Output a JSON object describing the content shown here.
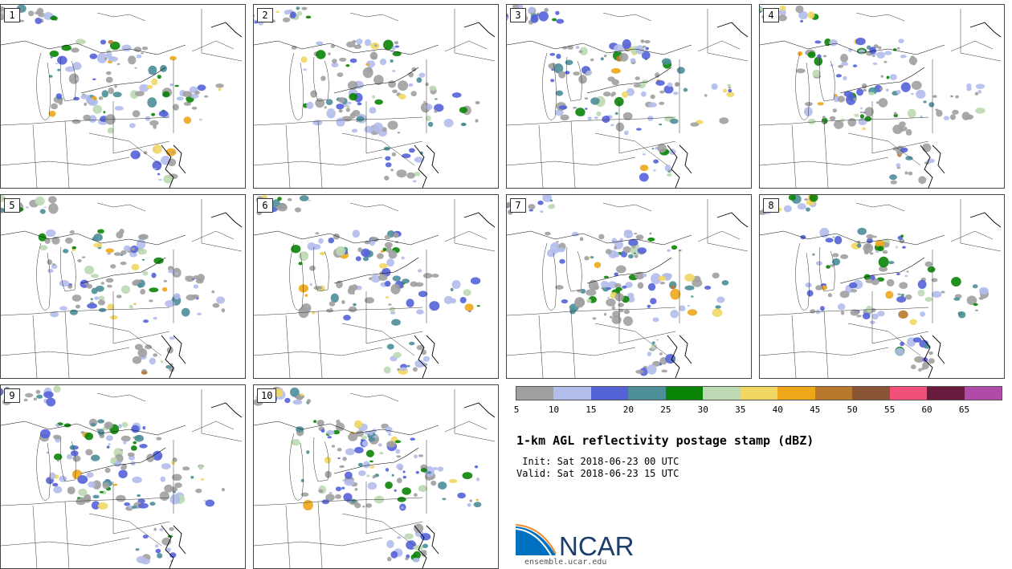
{
  "members": [
    "1",
    "2",
    "3",
    "4",
    "5",
    "6",
    "7",
    "8",
    "9",
    "10"
  ],
  "colorbar": {
    "colors": [
      "#a0a0a0",
      "#b3bdeb",
      "#5462d8",
      "#4d8e99",
      "#0a8405",
      "#bcd9b4",
      "#f0d764",
      "#eda719",
      "#b8792c",
      "#8a5437",
      "#f0507a",
      "#691b3e",
      "#b04ba8"
    ],
    "ticks": [
      "5",
      "10",
      "15",
      "20",
      "25",
      "30",
      "35",
      "40",
      "45",
      "50",
      "55",
      "60",
      "65"
    ]
  },
  "title": "1-km AGL reflectivity postage stamp (dBZ)",
  "init": " Init: Sat 2018-06-23 00 UTC",
  "valid": "Valid: Sat 2018-06-23 15 UTC",
  "logo": {
    "text": "NCAR",
    "url": "ensemble.ucar.edu",
    "colors": [
      "#0070c0",
      "#1d3d6b",
      "#f08a28"
    ]
  }
}
